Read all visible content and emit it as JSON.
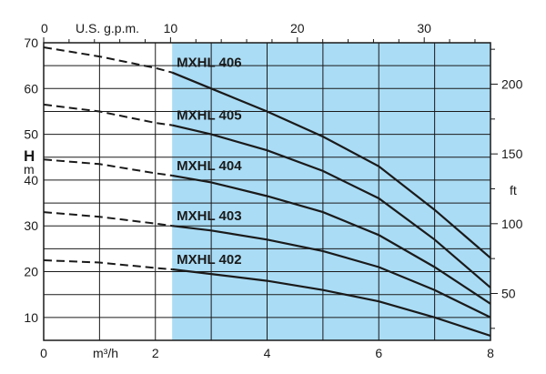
{
  "chart_data": {
    "type": "line",
    "title": "",
    "xlabel": "m³/h",
    "xlabel_top": "U.S. g.p.m.",
    "ylabel": "H",
    "ylabel_unit": "m",
    "ylabel_right": "ft",
    "xlim": [
      0,
      8
    ],
    "ylim": [
      5,
      70
    ],
    "x_ticks": [
      0,
      2,
      4,
      6,
      8
    ],
    "y_ticks": [
      10,
      20,
      30,
      40,
      50,
      60,
      70
    ],
    "x_top_ticks": [
      0,
      10,
      20,
      30
    ],
    "y_right_ticks": [
      50,
      100,
      150,
      200
    ],
    "grid": true,
    "operating_range": [
      2.3,
      8
    ],
    "operating_range_color": "#aadcf5",
    "series": [
      {
        "name": "MXHL 406",
        "x": [
          0,
          1,
          2,
          2.3,
          3,
          4,
          5,
          6,
          7,
          8
        ],
        "y": [
          69,
          67,
          64.5,
          63.5,
          60,
          55,
          49.5,
          43,
          33.5,
          23
        ]
      },
      {
        "name": "MXHL 405",
        "x": [
          0,
          1,
          2,
          2.3,
          3,
          4,
          5,
          6,
          7,
          8
        ],
        "y": [
          56.5,
          55,
          52.5,
          52,
          50,
          46.5,
          42,
          36,
          27,
          16.5
        ]
      },
      {
        "name": "MXHL 404",
        "x": [
          0,
          1,
          2,
          2.3,
          3,
          4,
          5,
          6,
          7,
          8
        ],
        "y": [
          44.5,
          43.5,
          41.5,
          41,
          39.5,
          36.5,
          33,
          28,
          21,
          13
        ]
      },
      {
        "name": "MXHL 403",
        "x": [
          0,
          1,
          2,
          2.3,
          3,
          4,
          5,
          6,
          7,
          8
        ],
        "y": [
          33,
          32,
          30.5,
          30,
          29,
          27,
          24.5,
          21,
          16,
          10
        ]
      },
      {
        "name": "MXHL 402",
        "x": [
          0,
          1,
          2,
          2.3,
          3,
          4,
          5,
          6,
          7,
          8
        ],
        "y": [
          22.5,
          22,
          20.8,
          20.5,
          19.5,
          18,
          16,
          13.5,
          10,
          6
        ]
      }
    ]
  }
}
